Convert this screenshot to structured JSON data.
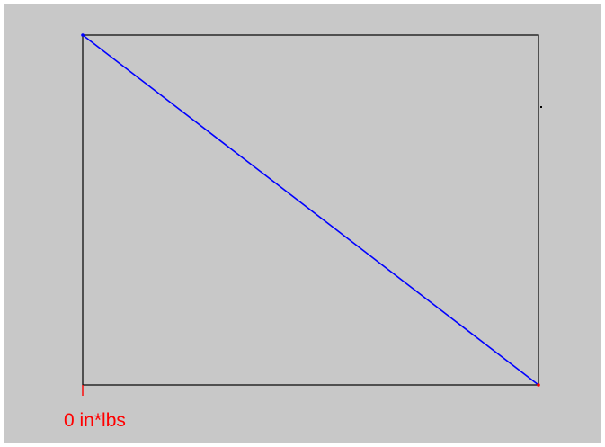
{
  "colors": {
    "canvas_background": "#c8c8c8",
    "frame": "#000000",
    "line": "#0000ff",
    "label": "#ff0000"
  },
  "chart_data": {
    "type": "line",
    "title": "",
    "xlabel": "",
    "ylabel": "",
    "tick_labels": [
      "0 in*lbs"
    ],
    "series": [
      {
        "values": [
          {
            "x": 0,
            "y": 1
          },
          {
            "x": 1,
            "y": 0
          }
        ]
      }
    ],
    "xlim": [
      0,
      1
    ],
    "ylim": [
      0,
      1
    ],
    "grid": false
  }
}
